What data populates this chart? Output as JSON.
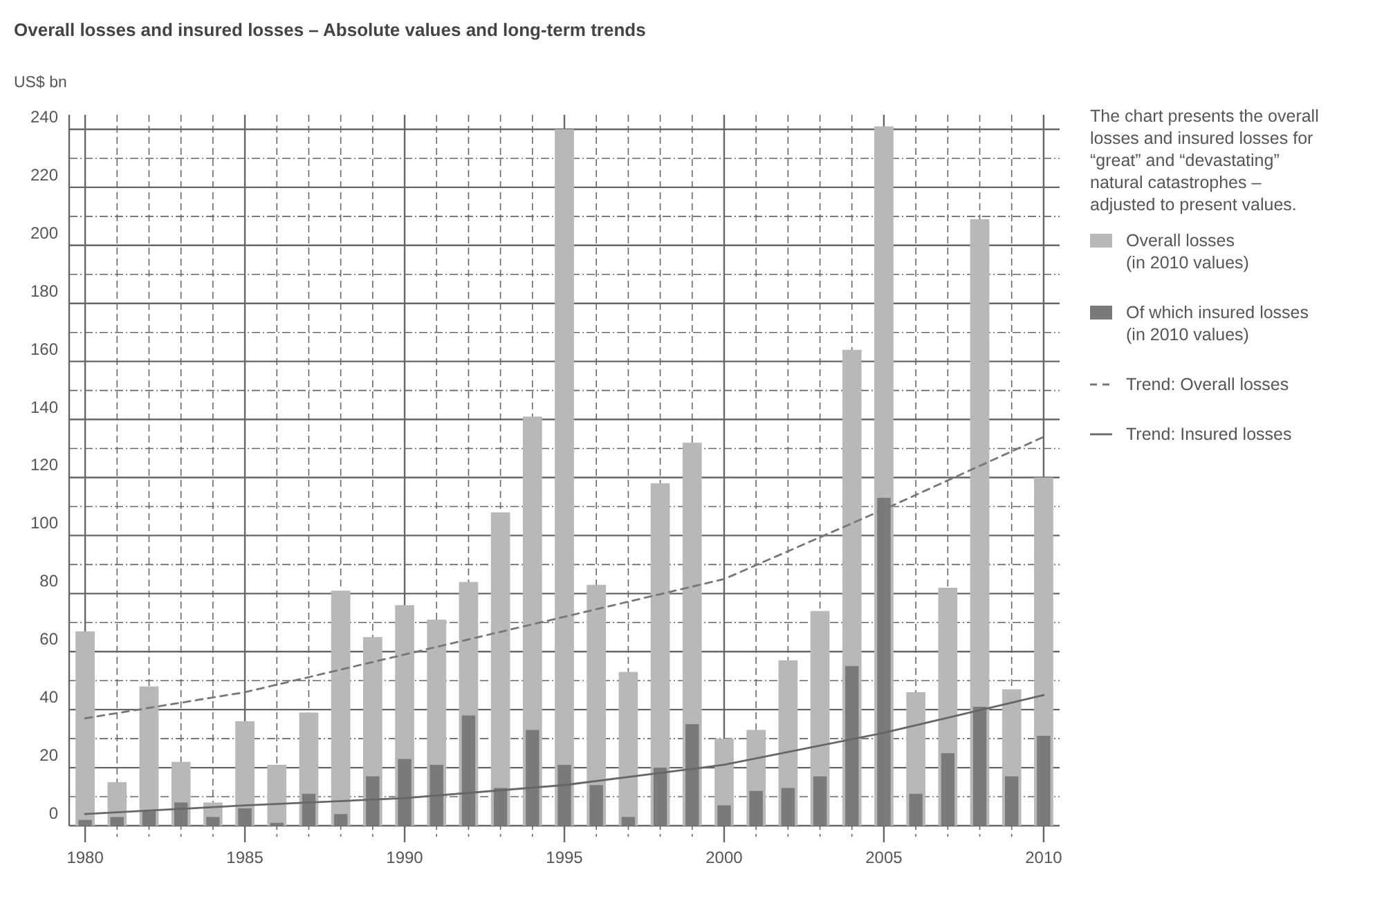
{
  "chart_data": {
    "type": "bar",
    "title": "Overall losses and insured losses – Absolute values and long-term trends",
    "ylabel": "US$ bn",
    "x": [
      1980,
      1981,
      1982,
      1983,
      1984,
      1985,
      1986,
      1987,
      1988,
      1989,
      1990,
      1991,
      1992,
      1993,
      1994,
      1995,
      1996,
      1997,
      1998,
      1999,
      2000,
      2001,
      2002,
      2003,
      2004,
      2005,
      2006,
      2007,
      2008,
      2009,
      2010
    ],
    "series": [
      {
        "name": "Overall losses (in 2010 values)",
        "color": "#b8b8b8",
        "values": [
          67,
          15,
          48,
          22,
          8,
          36,
          21,
          39,
          81,
          65,
          76,
          71,
          84,
          108,
          141,
          240,
          83,
          53,
          118,
          132,
          30,
          33,
          57,
          74,
          164,
          241,
          46,
          82,
          209,
          47,
          120
        ]
      },
      {
        "name": "Of which insured losses (in 2010 values)",
        "color": "#7a7a7a",
        "values": [
          2,
          3,
          5,
          8,
          3,
          6,
          1,
          11,
          4,
          17,
          23,
          21,
          38,
          13,
          33,
          21,
          14,
          3,
          20,
          35,
          7,
          12,
          13,
          17,
          55,
          113,
          11,
          25,
          41,
          17,
          31
        ]
      },
      {
        "name": "Trend: Overall losses",
        "type": "line",
        "line_style": "dashed",
        "color": "#777777",
        "x": [
          1980,
          1985,
          1990,
          1995,
          2000,
          2005,
          2010
        ],
        "values": [
          37,
          46,
          59,
          72,
          85,
          109,
          134
        ]
      },
      {
        "name": "Trend: Insured losses",
        "type": "line",
        "line_style": "solid",
        "color": "#666666",
        "x": [
          1980,
          1985,
          1990,
          1995,
          2000,
          2005,
          2010
        ],
        "values": [
          4,
          7,
          9.5,
          14,
          21,
          32,
          45
        ]
      }
    ],
    "xlim": [
      1979.5,
      2010.5
    ],
    "xticks": [
      1980,
      {
        "value": 1981,
        "label": null
      },
      {
        "value": 1982,
        "label": null
      },
      {
        "value": 1983,
        "label": null
      },
      {
        "value": 1984,
        "label": null
      },
      1985,
      {
        "value": 1986,
        "label": null
      },
      {
        "value": 1987,
        "label": null
      },
      {
        "value": 1988,
        "label": null
      },
      {
        "value": 1989,
        "label": null
      },
      1990,
      {
        "value": 1991,
        "label": null
      },
      {
        "value": 1992,
        "label": null
      },
      {
        "value": 1993,
        "label": null
      },
      {
        "value": 1994,
        "label": null
      },
      1995,
      {
        "value": 1996,
        "label": null
      },
      {
        "value": 1997,
        "label": null
      },
      {
        "value": 1998,
        "label": null
      },
      {
        "value": 1999,
        "label": null
      },
      2000,
      {
        "value": 2001,
        "label": null
      },
      {
        "value": 2002,
        "label": null
      },
      {
        "value": 2003,
        "label": null
      },
      {
        "value": 2004,
        "label": null
      },
      2005,
      {
        "value": 2006,
        "label": null
      },
      {
        "value": 2007,
        "label": null
      },
      {
        "value": 2008,
        "label": null
      },
      {
        "value": 2009,
        "label": null
      },
      2010
    ],
    "ylim": [
      0,
      245
    ],
    "yticks": [
      0,
      {
        "value": 10,
        "label": null
      },
      20,
      {
        "value": 30,
        "label": null
      },
      40,
      {
        "value": 50,
        "label": null
      },
      60,
      {
        "value": 70,
        "label": null
      },
      80,
      {
        "value": 90,
        "label": null
      },
      100,
      {
        "value": 110,
        "label": null
      },
      120,
      {
        "value": 130,
        "label": null
      },
      140,
      {
        "value": 150,
        "label": null
      },
      160,
      {
        "value": 170,
        "label": null
      },
      180,
      {
        "value": 190,
        "label": null
      },
      200,
      {
        "value": 210,
        "label": null
      },
      220,
      {
        "value": 230,
        "label": null
      },
      240
    ],
    "grid": true,
    "legend": "right",
    "annotations": [
      "The chart presents the overall losses and insured losses for “great” and “devastating” natural catastrophes – adjusted to present values."
    ]
  }
}
